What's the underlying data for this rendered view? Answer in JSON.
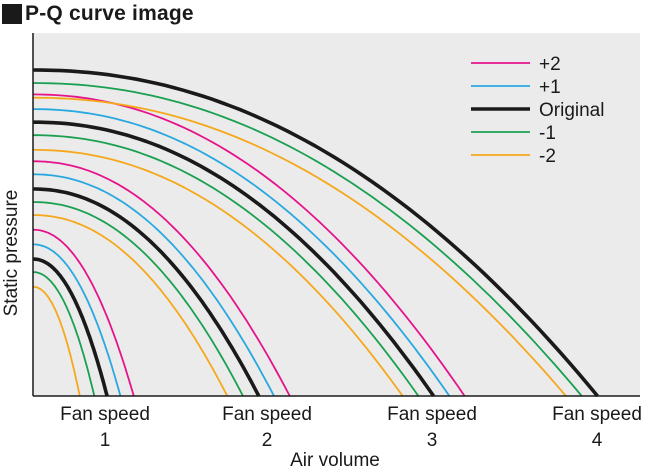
{
  "title": "P-Q curve image",
  "chart_data": {
    "type": "line",
    "title": "P-Q curve image",
    "xlabel": "Air volume",
    "ylabel": "Static pressure",
    "x_categories": [
      {
        "line1": "Fan speed",
        "line2": "1"
      },
      {
        "line1": "Fan speed",
        "line2": "2"
      },
      {
        "line1": "Fan speed",
        "line2": "3"
      },
      {
        "line1": "Fan speed",
        "line2": "4"
      }
    ],
    "legend_position": "top-right",
    "grid": false,
    "plot_background": "#ebebeb",
    "axis_color": "#1a1a1a",
    "series_styles": [
      {
        "name": "+2",
        "color": "#e5148c",
        "emphasis": false
      },
      {
        "name": "+1",
        "color": "#29a8e0",
        "emphasis": false
      },
      {
        "name": "Original",
        "color": "#1a1a1a",
        "emphasis": true
      },
      {
        "name": "-1",
        "color": "#1aa050",
        "emphasis": false
      },
      {
        "name": "-2",
        "color": "#f5a81c",
        "emphasis": false
      }
    ],
    "curve_groups": [
      {
        "fan_speed": "1",
        "curves": [
          {
            "series": "+2",
            "max_pressure": 0.51,
            "max_air_volume": 0.166
          },
          {
            "series": "+1",
            "max_pressure": 0.465,
            "max_air_volume": 0.144
          },
          {
            "series": "Original",
            "max_pressure": 0.42,
            "max_air_volume": 0.122
          },
          {
            "series": "-1",
            "max_pressure": 0.38,
            "max_air_volume": 0.101
          },
          {
            "series": "-2",
            "max_pressure": 0.335,
            "max_air_volume": 0.077
          }
        ]
      },
      {
        "fan_speed": "2",
        "curves": [
          {
            "series": "+2",
            "max_pressure": 0.72,
            "max_air_volume": 0.423
          },
          {
            "series": "+1",
            "max_pressure": 0.68,
            "max_air_volume": 0.397
          },
          {
            "series": "Original",
            "max_pressure": 0.635,
            "max_air_volume": 0.372
          },
          {
            "series": "-1",
            "max_pressure": 0.595,
            "max_air_volume": 0.346
          },
          {
            "series": "-2",
            "max_pressure": 0.555,
            "max_air_volume": 0.32
          }
        ]
      },
      {
        "fan_speed": "3",
        "curves": [
          {
            "series": "+2",
            "max_pressure": 0.925,
            "max_air_volume": 0.711
          },
          {
            "series": "+1",
            "max_pressure": 0.88,
            "max_air_volume": 0.686
          },
          {
            "series": "Original",
            "max_pressure": 0.84,
            "max_air_volume": 0.66
          },
          {
            "series": "-1",
            "max_pressure": 0.8,
            "max_air_volume": 0.635
          },
          {
            "series": "-2",
            "max_pressure": 0.755,
            "max_air_volume": 0.609
          }
        ]
      },
      {
        "fan_speed": "4",
        "curves": [
          {
            "series": "Original",
            "max_pressure": 1.0,
            "max_air_volume": 0.93
          },
          {
            "series": "-1",
            "max_pressure": 0.96,
            "max_air_volume": 0.904
          },
          {
            "series": "-2",
            "max_pressure": 0.915,
            "max_air_volume": 0.878
          }
        ]
      }
    ]
  }
}
